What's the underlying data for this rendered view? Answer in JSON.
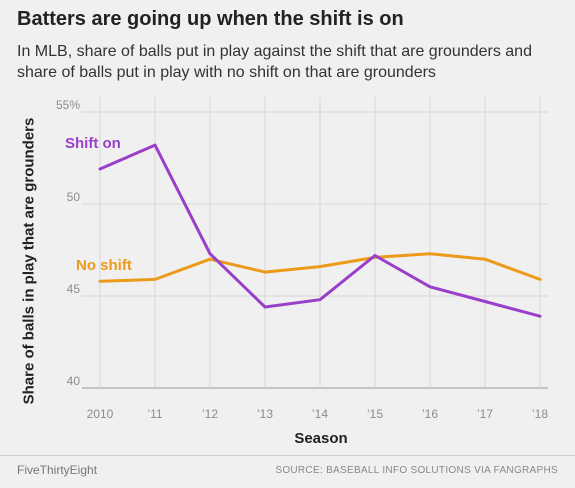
{
  "header": {
    "title": "Batters are going up when the shift is on",
    "subtitle": "In MLB, share of balls put in play against the shift that are grounders and share of balls put in play with no shift on that are grounders"
  },
  "footer": {
    "brand": "FiveThirtyEight",
    "source": "SOURCE: BASEBALL INFO SOLUTIONS VIA FANGRAPHS"
  },
  "chart_data": {
    "type": "line",
    "title": "Batters are going up when the shift is on",
    "xlabel": "Season",
    "ylabel": "Share of balls in play that are grounders",
    "categories": [
      "2010",
      "’11",
      "’12",
      "’13",
      "’14",
      "’15",
      "’16",
      "’17",
      "’18"
    ],
    "y_ticks": [
      "40",
      "45",
      "50",
      "55%"
    ],
    "y_tick_values": [
      40,
      45,
      50,
      55
    ],
    "ylim": [
      40,
      55
    ],
    "grid": true,
    "legend": "inline labels",
    "series": [
      {
        "name": "Shift on",
        "color": "#9a3fc9",
        "values": [
          51.9,
          53.2,
          47.3,
          44.4,
          44.8,
          47.2,
          45.5,
          44.7,
          43.9
        ]
      },
      {
        "name": "No shift",
        "color": "#ec9a1a",
        "values": [
          45.8,
          45.9,
          47.0,
          46.3,
          46.6,
          47.1,
          47.3,
          47.0,
          45.9
        ]
      }
    ]
  }
}
